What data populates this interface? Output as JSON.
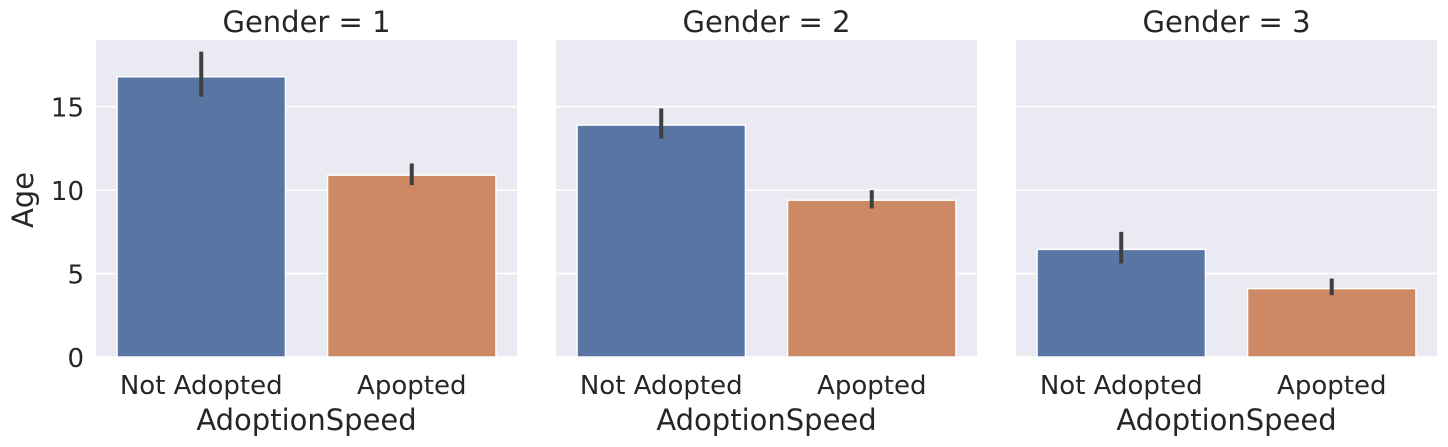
{
  "chart_data": {
    "type": "bar",
    "ylabel": "Age",
    "xlabel": "AdoptionSpeed",
    "ylim": [
      0,
      19
    ],
    "yticks": [
      0,
      5,
      10,
      15
    ],
    "categories": [
      "Not Adopted",
      "Apopted"
    ],
    "colors": [
      "#5975a4",
      "#cc8963"
    ],
    "grid": true,
    "facets": [
      {
        "title": "Gender = 1",
        "values": [
          16.8,
          10.9
        ],
        "error_low": [
          15.6,
          10.3
        ],
        "error_high": [
          18.3,
          11.6
        ]
      },
      {
        "title": "Gender = 2",
        "values": [
          13.9,
          9.4
        ],
        "error_low": [
          13.1,
          8.9
        ],
        "error_high": [
          14.9,
          10.0
        ]
      },
      {
        "title": "Gender = 3",
        "values": [
          6.45,
          4.1
        ],
        "error_low": [
          5.6,
          3.7
        ],
        "error_high": [
          7.5,
          4.7
        ]
      }
    ]
  }
}
